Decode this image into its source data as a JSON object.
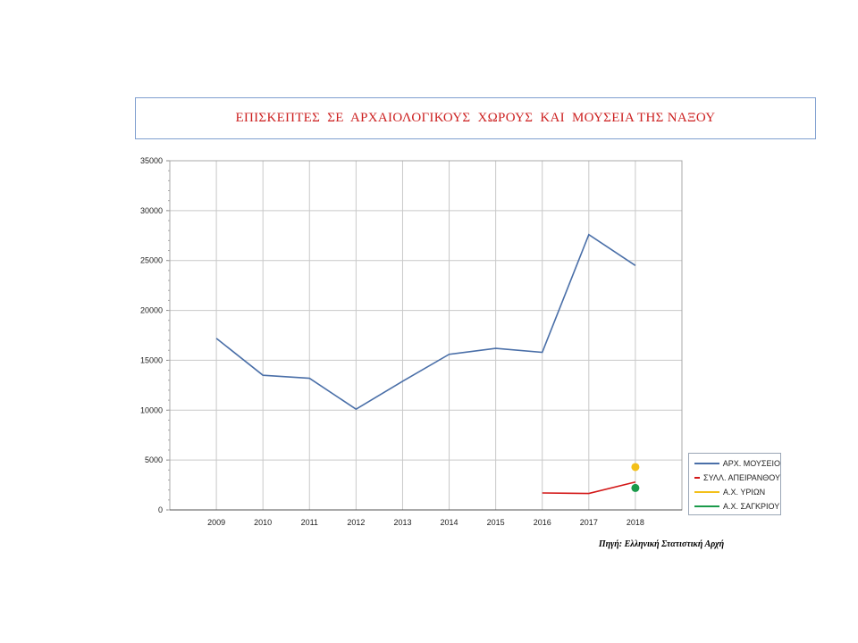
{
  "chart_data": {
    "type": "line",
    "title": "ΕΠΙΣΚΕΠΤΕΣ  ΣΕ  ΑΡΧΑΙΟΛΟΓΙΚΟΥΣ  ΧΩΡΟΥΣ  ΚΑΙ  ΜΟΥΣΕΙΑ ΤΗΣ ΝΑΞΟΥ",
    "categories": [
      "2009",
      "2010",
      "2011",
      "2012",
      "2013",
      "2014",
      "2015",
      "2016",
      "2017",
      "2018"
    ],
    "ylim": [
      0,
      35000
    ],
    "yticks": [
      "0",
      "5000",
      "10000",
      "15000",
      "20000",
      "25000",
      "30000",
      "35000"
    ],
    "grid": true,
    "legend_position": "bottom-right",
    "series": [
      {
        "name": "ΑΡΧ. ΜΟΥΣΕΙΟ",
        "color": "#4a6fa8",
        "values": [
          17200,
          13500,
          13200,
          10100,
          12900,
          15600,
          16200,
          15800,
          27600,
          24500
        ]
      },
      {
        "name": "ΣΥΛΛ. ΑΠΕΙΡΑΝΘΟΥ",
        "color": "#d31818",
        "values": [
          null,
          null,
          null,
          null,
          null,
          null,
          null,
          1700,
          1650,
          2800
        ]
      },
      {
        "name": "Α.Χ. ΥΡΙΩΝ",
        "color": "#f3c019",
        "values": [
          null,
          null,
          null,
          null,
          null,
          null,
          null,
          null,
          null,
          4300
        ]
      },
      {
        "name": "Α.Χ. ΣΑΓΚΡΙΟΥ",
        "color": "#1a9a4a",
        "values": [
          null,
          null,
          null,
          null,
          null,
          null,
          null,
          null,
          null,
          2200
        ]
      }
    ]
  },
  "source_text": "Πηγή: Ελληνική Στατιστική Αρχή"
}
